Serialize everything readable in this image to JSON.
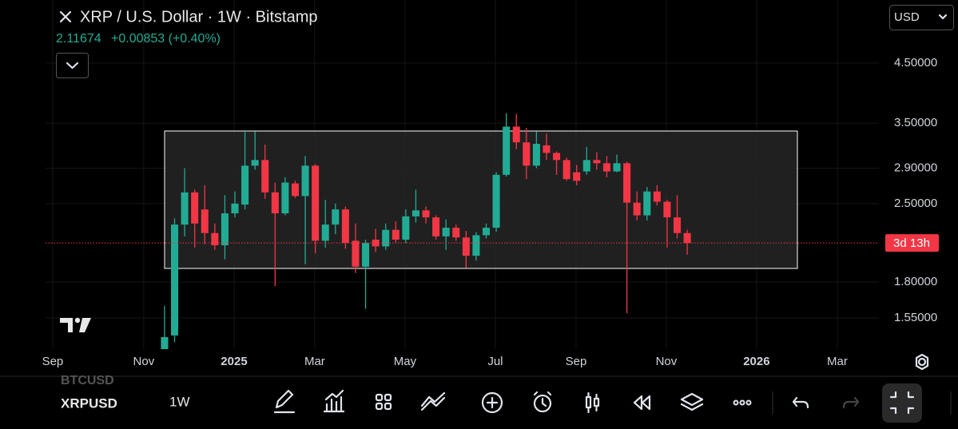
{
  "header": {
    "symbol": "XRP / U.S. Dollar · 1W · Bitstamp",
    "price": "2.11674",
    "change": "+0.00853 (+0.40%)"
  },
  "currency": "USD",
  "countdown": "3d 13h",
  "toolbar": {
    "symbols": [
      "BTCUSD",
      "XRPUSD"
    ],
    "interval": "1W"
  },
  "chart_data": {
    "type": "candlestick",
    "x": [
      0,
      1,
      2,
      3,
      4,
      5,
      6,
      7,
      8,
      9,
      10,
      11,
      12,
      13,
      14,
      15,
      16,
      17,
      18,
      19,
      20,
      21,
      22,
      23,
      24,
      25,
      26,
      27,
      28,
      29,
      30,
      31,
      32,
      33,
      34,
      35,
      36,
      37,
      38,
      39,
      40,
      41,
      42,
      43,
      44,
      45,
      46,
      47,
      48,
      49,
      50,
      51,
      52
    ],
    "open": [
      1.1,
      1.44,
      2.29,
      2.62,
      2.44,
      2.21,
      2.1,
      2.4,
      2.49,
      2.93,
      3.0,
      2.62,
      2.4,
      2.72,
      2.58,
      2.93,
      2.14,
      2.29,
      2.44,
      2.14,
      1.92,
      2.15,
      2.09,
      2.24,
      2.15,
      2.37,
      2.43,
      2.36,
      2.18,
      2.26,
      2.17,
      2.01,
      2.19,
      2.26,
      2.82,
      3.45,
      3.23,
      2.93,
      3.19,
      3.09,
      3.0,
      2.85,
      2.86,
      3.0,
      2.96,
      2.86,
      2.96,
      2.51,
      2.38,
      2.63,
      2.52,
      2.36,
      2.21
    ],
    "high": [
      1.63,
      2.35,
      2.9,
      2.65,
      2.7,
      2.3,
      2.59,
      2.63,
      3.4,
      3.38,
      3.2,
      2.73,
      2.79,
      2.75,
      3.05,
      2.95,
      2.54,
      2.5,
      2.47,
      2.3,
      2.15,
      2.25,
      2.3,
      2.32,
      2.44,
      2.65,
      2.47,
      2.38,
      2.34,
      2.29,
      2.23,
      2.22,
      2.3,
      2.85,
      3.65,
      3.64,
      3.43,
      3.38,
      3.35,
      3.11,
      3.03,
      2.94,
      3.17,
      3.1,
      3.05,
      3.07,
      2.98,
      2.63,
      2.68,
      2.7,
      2.54,
      2.59,
      2.24
    ],
    "low": [
      1.07,
      1.4,
      2.18,
      2.08,
      2.11,
      2.06,
      1.98,
      2.36,
      2.44,
      2.88,
      2.55,
      1.77,
      2.38,
      2.56,
      1.94,
      2.03,
      2.08,
      2.2,
      2.07,
      1.87,
      1.61,
      2.04,
      2.06,
      2.12,
      2.12,
      2.31,
      2.3,
      2.15,
      2.06,
      2.14,
      1.91,
      1.97,
      2.16,
      2.22,
      2.8,
      3.14,
      2.77,
      2.9,
      3.0,
      2.82,
      2.75,
      2.7,
      2.82,
      2.88,
      2.79,
      2.85,
      1.58,
      2.33,
      2.33,
      2.48,
      2.08,
      2.16,
      2.02
    ],
    "close": [
      1.43,
      2.29,
      2.62,
      2.3,
      2.21,
      2.1,
      2.4,
      2.5,
      2.93,
      3.0,
      2.62,
      2.4,
      2.73,
      2.58,
      2.93,
      2.14,
      2.29,
      2.44,
      2.12,
      1.92,
      2.12,
      2.09,
      2.24,
      2.15,
      2.37,
      2.43,
      2.36,
      2.18,
      2.26,
      2.17,
      2.01,
      2.19,
      2.26,
      2.82,
      3.45,
      3.23,
      2.93,
      3.21,
      3.09,
      3.0,
      2.77,
      2.75,
      3.0,
      2.96,
      2.86,
      2.96,
      2.51,
      2.38,
      2.63,
      2.52,
      2.36,
      2.21,
      2.12
    ],
    "up_color": "#22ab94",
    "down_color": "#f23645",
    "log_scale": true,
    "grid": true,
    "ylim": [
      1.36,
      5.86
    ],
    "yticks": [
      {
        "value": 1.55,
        "label": "1.55000"
      },
      {
        "value": 1.8,
        "label": "1.80000"
      },
      {
        "value": 2.5,
        "label": "2.50000"
      },
      {
        "value": 2.9,
        "label": "2.90000"
      },
      {
        "value": 3.5,
        "label": "3.50000"
      },
      {
        "value": 4.5,
        "label": "4.50000"
      }
    ],
    "xlim": [
      -11.84,
      71.07
    ],
    "xticks": [
      {
        "value": -11.13,
        "label": "Sep"
      },
      {
        "value": -2.07,
        "label": "Nov"
      },
      {
        "value": 6.92,
        "label": "2025"
      },
      {
        "value": 14.94,
        "label": "Mar"
      },
      {
        "value": 23.93,
        "label": "May"
      },
      {
        "value": 32.91,
        "label": "Jul"
      },
      {
        "value": 40.94,
        "label": "Sep"
      },
      {
        "value": 49.92,
        "label": "Nov"
      },
      {
        "value": 58.9,
        "label": "2026"
      },
      {
        "value": 66.93,
        "label": "Mar"
      }
    ]
  }
}
